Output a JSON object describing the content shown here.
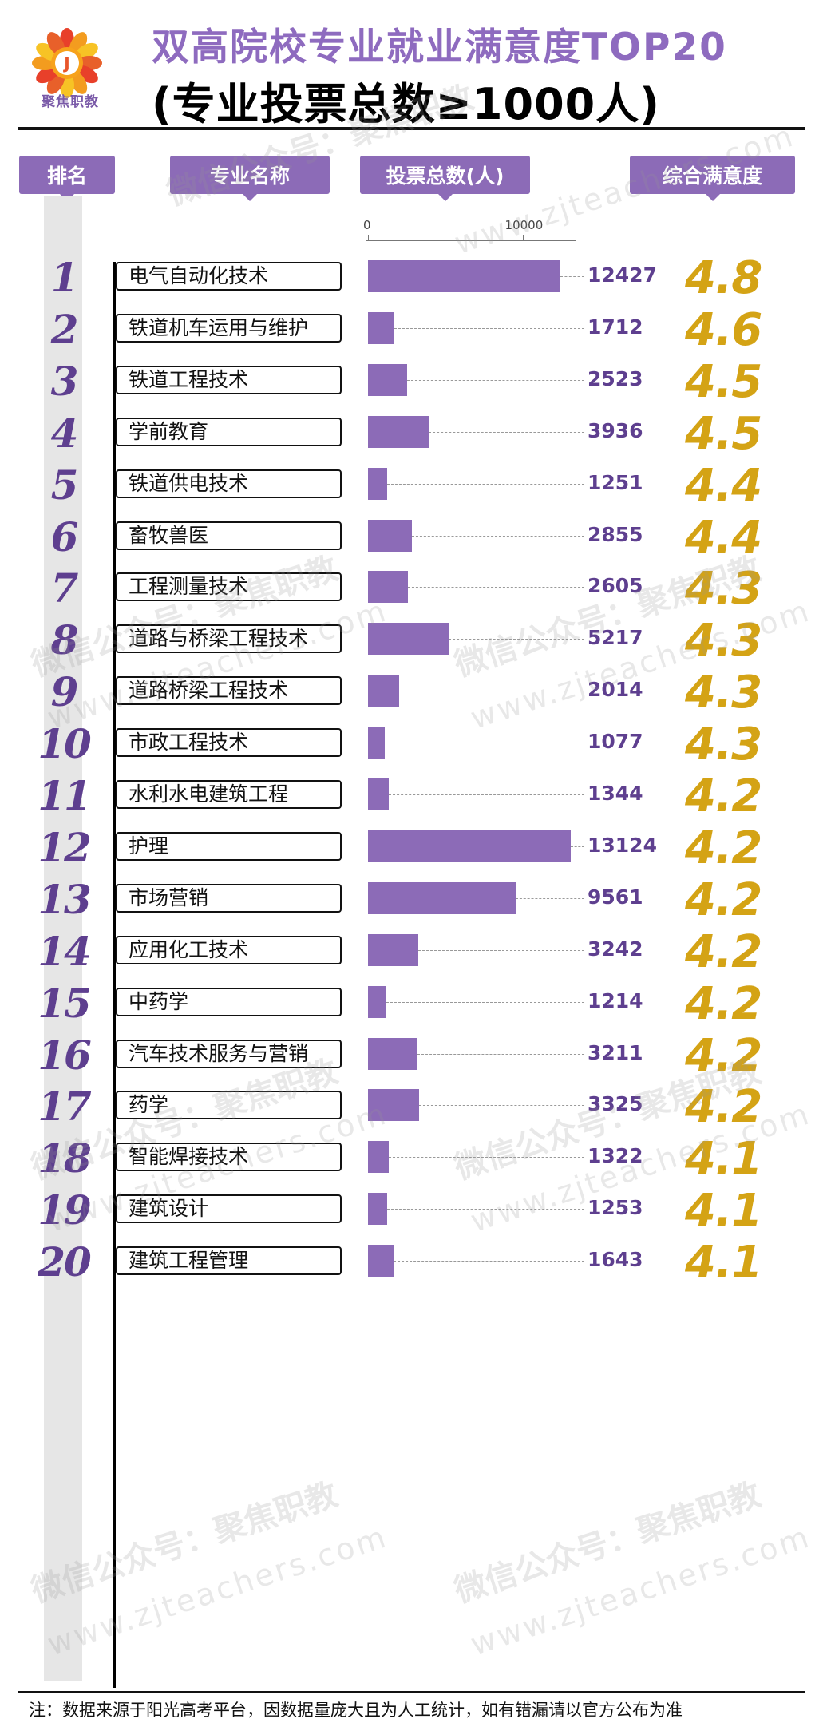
{
  "brand": {
    "logo_text": "聚焦职教",
    "logo_letter": "J"
  },
  "title_line1": "双高院校专业就业满意度TOP20",
  "title_line2": "(专业投票总数≥1000人)",
  "headers": {
    "rank": "排名",
    "major": "专业名称",
    "votes": "投票总数(人)",
    "score": "综合满意度"
  },
  "footnote": "注：数据来源于阳光高考平台，因数据量庞大且为人工统计，如有错漏请以官方公布为准",
  "watermarks": {
    "line1": "微信公众号：聚焦职教",
    "line2": "www.zjteachers.com"
  },
  "colors": {
    "accent": "#8c6bb7",
    "score": "#d4a315",
    "rank": "#5e3f8f"
  },
  "chart_data": {
    "type": "bar",
    "orientation": "horizontal",
    "xlim": [
      0,
      13124
    ],
    "x_ticks": [
      "0",
      "10000"
    ],
    "rows": [
      {
        "rank": "1",
        "major": "电气自动化技术",
        "votes": 12427,
        "score": "4.8"
      },
      {
        "rank": "2",
        "major": "铁道机车运用与维护",
        "votes": 1712,
        "score": "4.6"
      },
      {
        "rank": "3",
        "major": "铁道工程技术",
        "votes": 2523,
        "score": "4.5"
      },
      {
        "rank": "4",
        "major": "学前教育",
        "votes": 3936,
        "score": "4.5"
      },
      {
        "rank": "5",
        "major": "铁道供电技术",
        "votes": 1251,
        "score": "4.4"
      },
      {
        "rank": "6",
        "major": "畜牧兽医",
        "votes": 2855,
        "score": "4.4"
      },
      {
        "rank": "7",
        "major": "工程测量技术",
        "votes": 2605,
        "score": "4.3"
      },
      {
        "rank": "8",
        "major": "道路与桥梁工程技术",
        "votes": 5217,
        "score": "4.3"
      },
      {
        "rank": "9",
        "major": "道路桥梁工程技术",
        "votes": 2014,
        "score": "4.3"
      },
      {
        "rank": "10",
        "major": "市政工程技术",
        "votes": 1077,
        "score": "4.3"
      },
      {
        "rank": "11",
        "major": "水利水电建筑工程",
        "votes": 1344,
        "score": "4.2"
      },
      {
        "rank": "12",
        "major": "护理",
        "votes": 13124,
        "score": "4.2"
      },
      {
        "rank": "13",
        "major": "市场营销",
        "votes": 9561,
        "score": "4.2"
      },
      {
        "rank": "14",
        "major": "应用化工技术",
        "votes": 3242,
        "score": "4.2"
      },
      {
        "rank": "15",
        "major": "中药学",
        "votes": 1214,
        "score": "4.2"
      },
      {
        "rank": "16",
        "major": "汽车技术服务与营销",
        "votes": 3211,
        "score": "4.2"
      },
      {
        "rank": "17",
        "major": "药学",
        "votes": 3325,
        "score": "4.2"
      },
      {
        "rank": "18",
        "major": "智能焊接技术",
        "votes": 1322,
        "score": "4.1"
      },
      {
        "rank": "19",
        "major": "建筑设计",
        "votes": 1253,
        "score": "4.1"
      },
      {
        "rank": "20",
        "major": "建筑工程管理",
        "votes": 1643,
        "score": "4.1"
      }
    ]
  }
}
